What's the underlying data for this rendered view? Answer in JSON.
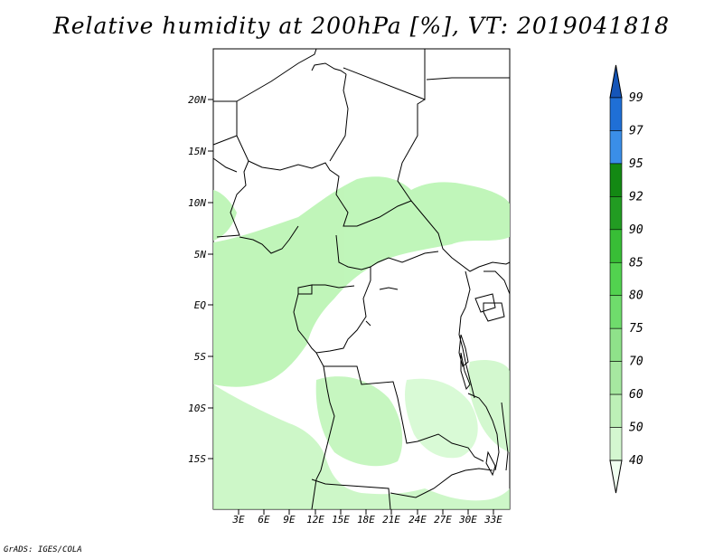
{
  "title": "Relative humidity at 200hPa [%], VT: 2019041818",
  "credit": "GrADS: IGES/COLA",
  "map": {
    "lon_range": [
      0,
      36
    ],
    "lat_range": [
      -20,
      25
    ],
    "lat_ticks": [
      "20N",
      "15N",
      "10N",
      "5N",
      "EQ",
      "5S",
      "10S",
      "15S"
    ],
    "lon_ticks": [
      "3E",
      "6E",
      "9E",
      "12E",
      "15E",
      "18E",
      "21E",
      "24E",
      "27E",
      "30E",
      "33E"
    ]
  },
  "legend": {
    "levels": [
      "40",
      "50",
      "60",
      "70",
      "75",
      "80",
      "85",
      "90",
      "92",
      "95",
      "97",
      "99"
    ],
    "colors": [
      "#f0fff0",
      "#d4f7d0",
      "#bdf0b7",
      "#a6e8a0",
      "#8fe28a",
      "#6fdc6c",
      "#52d24f",
      "#38be36",
      "#229c22",
      "#138913",
      "#3a8ee8",
      "#1f6fd6",
      "#1555b8"
    ]
  }
}
